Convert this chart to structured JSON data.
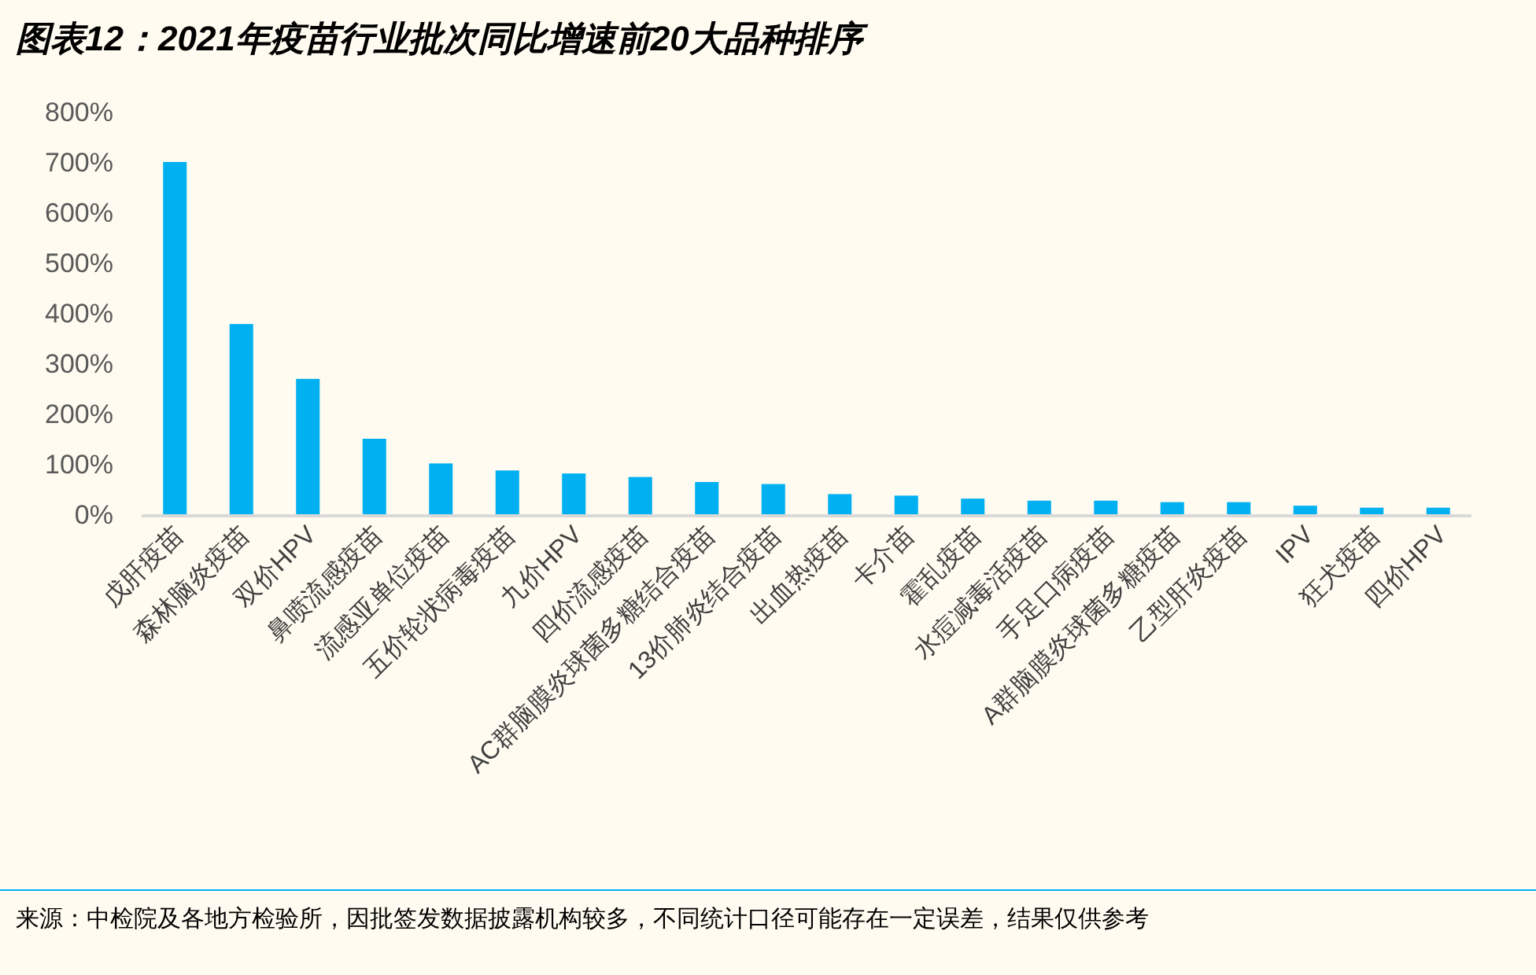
{
  "chart_data": {
    "type": "bar",
    "title": "图表12：2021年疫苗行业批次同比增速前20大品种排序",
    "categories": [
      "戊肝疫苗",
      "森林脑炎疫苗",
      "双价HPV",
      "鼻喷流感疫苗",
      "流感亚单位疫苗",
      "五价轮状病毒疫苗",
      "九价HPV",
      "四价流感疫苗",
      "AC群脑膜炎球菌多糖结合疫苗",
      "13价肺炎结合疫苗",
      "出血热疫苗",
      "卡介苗",
      "霍乱疫苗",
      "水痘减毒活疫苗",
      "手足口病疫苗",
      "A群脑膜炎球菌多糖疫苗",
      "乙型肝炎疫苗",
      "IPV",
      "狂犬疫苗",
      "四价HPV"
    ],
    "values": [
      700,
      378,
      269,
      150,
      101,
      87,
      81,
      74,
      64,
      60,
      40,
      37,
      31,
      27,
      27,
      24,
      24,
      17,
      13,
      13
    ],
    "color": "#00b0f0",
    "ylim": [
      0,
      800
    ],
    "yticks": [
      {
        "value": 0,
        "label": "0%"
      },
      {
        "value": 100,
        "label": "100%"
      },
      {
        "value": 200,
        "label": "200%"
      },
      {
        "value": 300,
        "label": "300%"
      },
      {
        "value": 400,
        "label": "400%"
      },
      {
        "value": 500,
        "label": "500%"
      },
      {
        "value": 600,
        "label": "600%"
      },
      {
        "value": 700,
        "label": "700%"
      },
      {
        "value": 800,
        "label": "800%"
      }
    ],
    "grid": false,
    "annotations": [
      "来源：中检院及各地方检验所，因批签发数据披露机构较多，不同统计口径可能存在一定误差，结果仅供参考"
    ]
  }
}
